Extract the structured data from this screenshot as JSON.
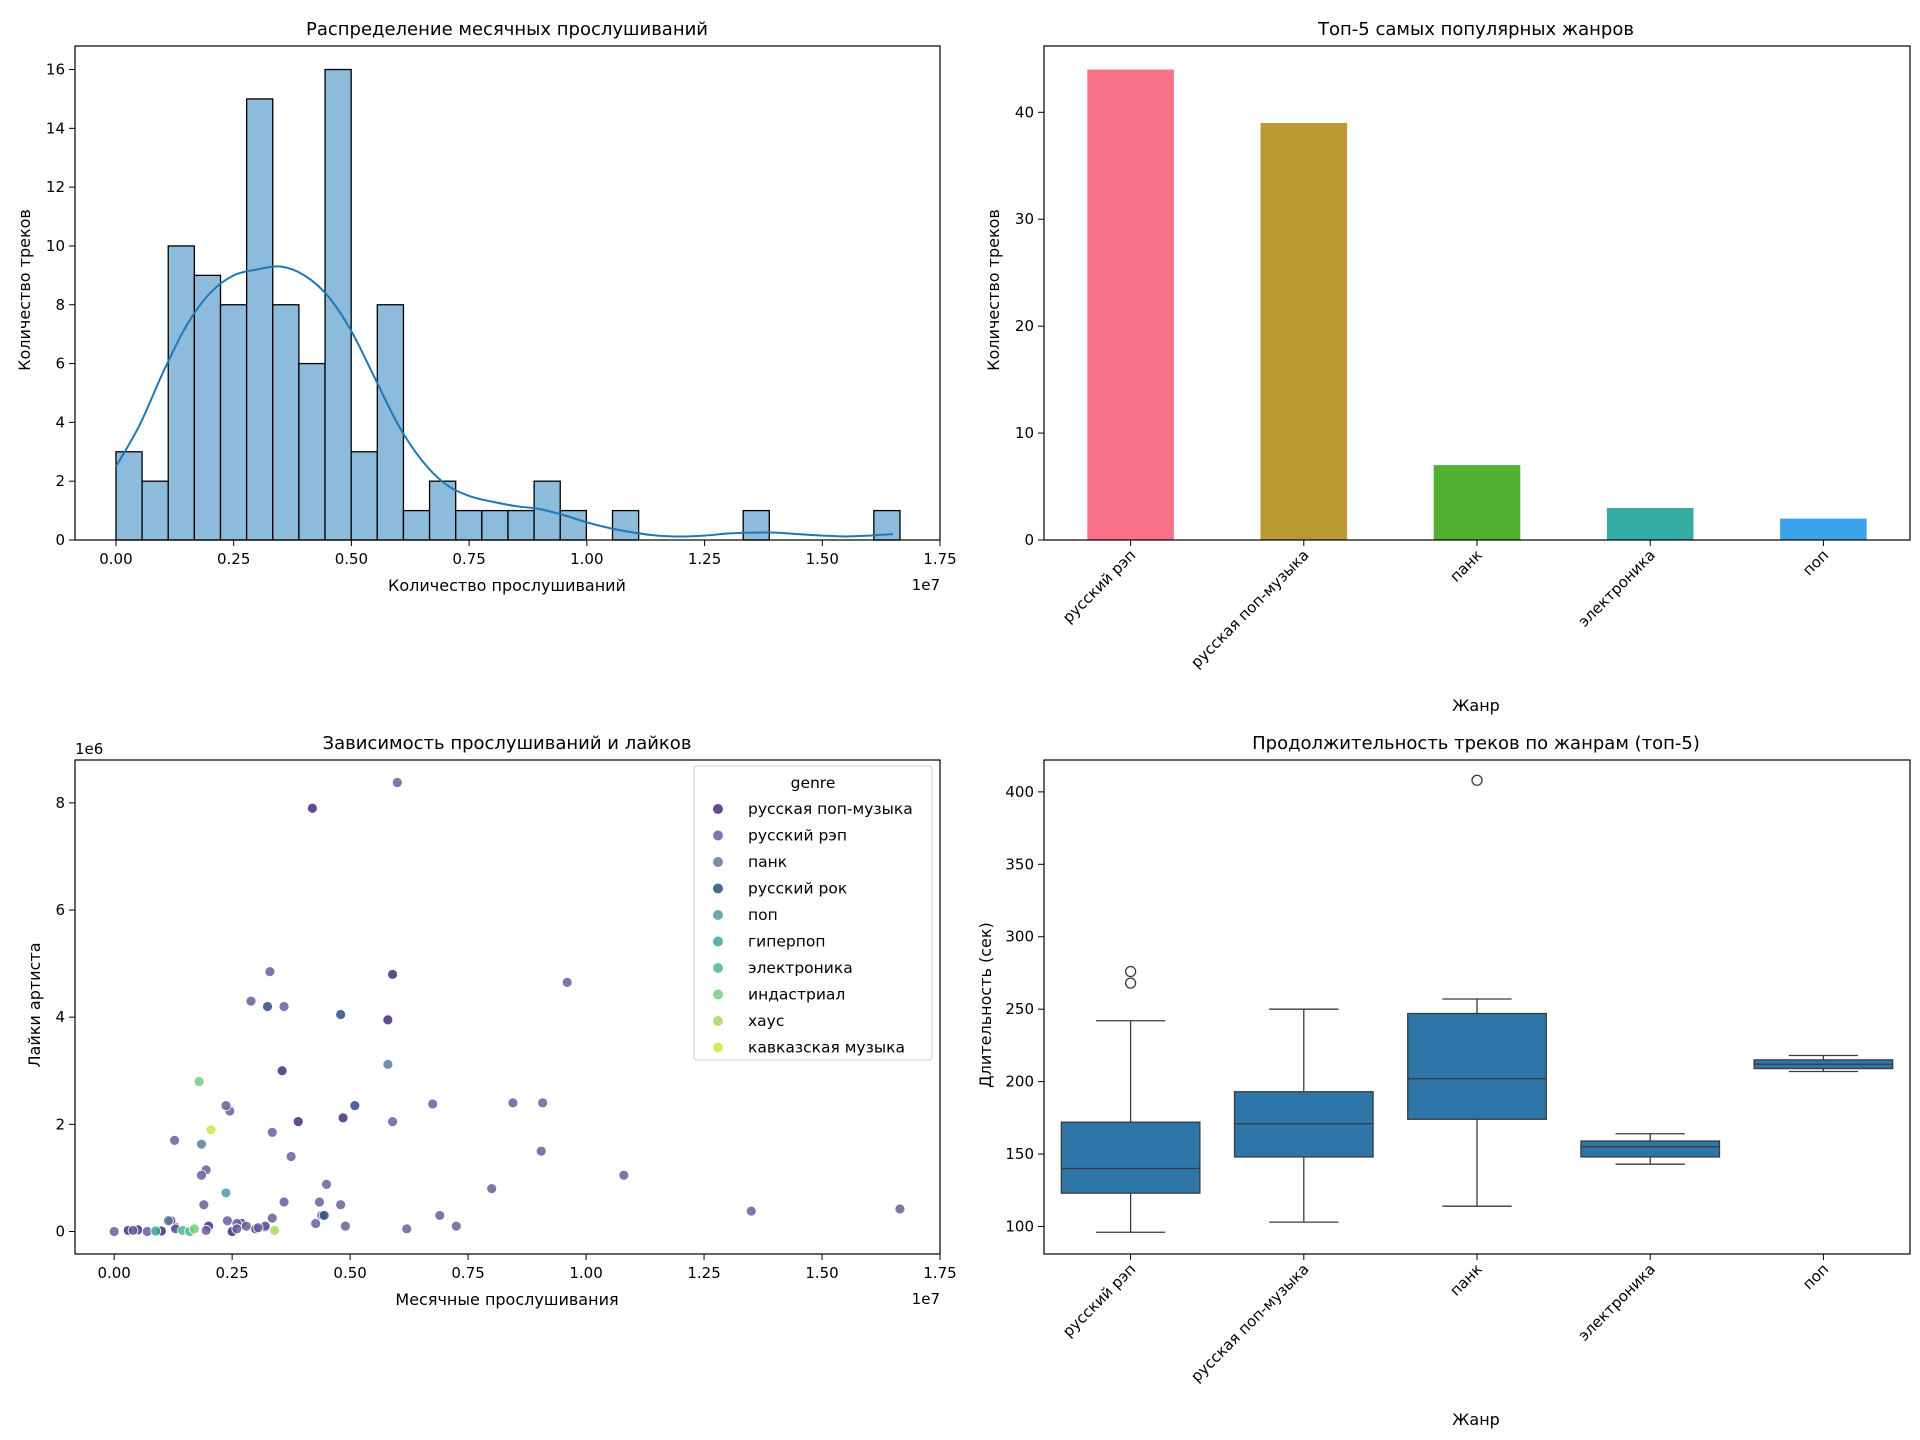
{
  "chart_data": [
    {
      "type": "bar",
      "subtype": "histogram-with-kde",
      "title": "Распределение месячных прослушиваний",
      "xlabel": "Количество прослушиваний",
      "ylabel": "Количество треков",
      "x_offset_label": "1e7",
      "xlim": [
        -0.087,
        1.75
      ],
      "ylim": [
        0,
        16.8
      ],
      "x_ticks": [
        0,
        0.25,
        0.5,
        0.75,
        1.0,
        1.25,
        1.5,
        1.75
      ],
      "x_tick_labels": [
        "0.00",
        "0.25",
        "0.50",
        "0.75",
        "1.00",
        "1.25",
        "1.50",
        "1.75"
      ],
      "y_ticks": [
        0,
        2,
        4,
        6,
        8,
        10,
        12,
        14,
        16
      ],
      "y_tick_labels": [
        "0",
        "2",
        "4",
        "6",
        "8",
        "10",
        "12",
        "14",
        "16"
      ],
      "bin_start": 0,
      "bin_width": 0.0555,
      "counts": [
        3,
        2,
        10,
        9,
        8,
        15,
        8,
        6,
        16,
        3,
        8,
        1,
        2,
        1,
        1,
        1,
        2,
        1,
        0,
        1,
        0,
        0,
        0,
        0,
        1,
        0,
        0,
        0,
        0,
        1
      ],
      "bar_color": "#8dbbdc",
      "kde": {
        "x": [
          0,
          0.05,
          0.1,
          0.15,
          0.2,
          0.25,
          0.3,
          0.35,
          0.4,
          0.45,
          0.5,
          0.55,
          0.6,
          0.65,
          0.7,
          0.75,
          0.8,
          0.85,
          0.9,
          0.95,
          1.0,
          1.05,
          1.1,
          1.15,
          1.2,
          1.25,
          1.3,
          1.35,
          1.4,
          1.45,
          1.5,
          1.55,
          1.6,
          1.65
        ],
        "y": [
          2.5,
          3.9,
          5.7,
          7.3,
          8.4,
          9.0,
          9.2,
          9.3,
          9.0,
          8.3,
          7.1,
          5.5,
          3.9,
          2.7,
          1.9,
          1.5,
          1.3,
          1.15,
          1.05,
          0.85,
          0.6,
          0.4,
          0.25,
          0.15,
          0.12,
          0.15,
          0.22,
          0.25,
          0.25,
          0.2,
          0.15,
          0.12,
          0.15,
          0.2
        ],
        "color": "#1f77b4"
      }
    },
    {
      "type": "bar",
      "title": "Топ-5 самых популярных жанров",
      "xlabel": "Жанр",
      "ylabel": "Количество треков",
      "categories": [
        "русский рэп",
        "русская поп-музыка",
        "панк",
        "электроника",
        "поп"
      ],
      "values": [
        44,
        39,
        7,
        3,
        2
      ],
      "colors": [
        "#f77189",
        "#bb9832",
        "#50b131",
        "#36ada4",
        "#3ba3ec"
      ],
      "ylim": [
        0,
        46.2
      ],
      "y_ticks": [
        0,
        10,
        20,
        30,
        40
      ],
      "y_tick_labels": [
        "0",
        "10",
        "20",
        "30",
        "40"
      ]
    },
    {
      "type": "scatter",
      "title": "Зависимость прослушиваний и лайков",
      "xlabel": "Месячные прослушивания",
      "ylabel": "Лайки артиста",
      "x_offset_label": "1e7",
      "y_offset_label": "1e6",
      "xlim": [
        -0.083,
        1.75
      ],
      "ylim": [
        -0.42,
        8.8
      ],
      "x_ticks": [
        0,
        0.25,
        0.5,
        0.75,
        1.0,
        1.25,
        1.5,
        1.75
      ],
      "x_tick_labels": [
        "0.00",
        "0.25",
        "0.50",
        "0.75",
        "1.00",
        "1.25",
        "1.50",
        "1.75"
      ],
      "y_ticks": [
        0,
        2,
        4,
        6,
        8
      ],
      "y_tick_labels": [
        "0",
        "2",
        "4",
        "6",
        "8"
      ],
      "legend_title": "genre",
      "legend_position": "upper right",
      "series": [
        {
          "name": "русская поп-музыка",
          "color": "#472c7a",
          "points": [
            [
              0.42,
              7.9
            ],
            [
              0.59,
              4.8
            ],
            [
              0.58,
              3.95
            ],
            [
              0.356,
              3.0
            ],
            [
              0.39,
              2.05
            ],
            [
              0.485,
              2.12
            ],
            [
              0.27,
              0.15
            ],
            [
              0.3,
              0.05
            ],
            [
              0.32,
              0.08
            ],
            [
              0.03,
              0.02
            ],
            [
              0.05,
              0.03
            ],
            [
              0.1,
              0.01
            ],
            [
              0.2,
              0.1
            ],
            [
              0.25,
              0.0
            ],
            [
              0.13,
              0.08
            ],
            [
              0.12,
              0.2
            ]
          ]
        },
        {
          "name": "русский рэп",
          "color": "#6b5e9e",
          "points": [
            [
              0.6,
              8.38
            ],
            [
              0.96,
              4.65
            ],
            [
              0.33,
              4.85
            ],
            [
              0.29,
              4.3
            ],
            [
              0.36,
              4.2
            ],
            [
              0.245,
              2.25
            ],
            [
              0.237,
              2.35
            ],
            [
              0.335,
              1.85
            ],
            [
              0.128,
              1.7
            ],
            [
              0.195,
              1.15
            ],
            [
              0.375,
              1.4
            ],
            [
              0.185,
              1.05
            ],
            [
              0.45,
              0.88
            ],
            [
              0.48,
              0.5
            ],
            [
              0.435,
              0.55
            ],
            [
              0.36,
              0.55
            ],
            [
              0.19,
              0.5
            ],
            [
              0.427,
              0.15
            ],
            [
              0.44,
              0.3
            ],
            [
              0.49,
              0.1
            ],
            [
              0.59,
              2.05
            ],
            [
              0.675,
              2.38
            ],
            [
              0.845,
              2.4
            ],
            [
              0.908,
              2.4
            ],
            [
              0.905,
              1.5
            ],
            [
              0.8,
              0.8
            ],
            [
              0.69,
              0.3
            ],
            [
              0.725,
              0.1
            ],
            [
              0.62,
              0.05
            ],
            [
              1.08,
              1.05
            ],
            [
              1.35,
              0.38
            ],
            [
              1.665,
              0.42
            ],
            [
              0.0,
              0.0
            ],
            [
              0.04,
              0.02
            ],
            [
              0.07,
              0.0
            ],
            [
              0.13,
              0.05
            ],
            [
              0.195,
              0.02
            ],
            [
              0.24,
              0.2
            ],
            [
              0.26,
              0.15
            ],
            [
              0.335,
              0.25
            ],
            [
              0.32,
              0.1
            ],
            [
              0.305,
              0.07
            ],
            [
              0.26,
              0.05
            ],
            [
              0.28,
              0.1
            ]
          ]
        },
        {
          "name": "панк",
          "color": "#5a7aa0",
          "points": [
            [
              0.58,
              3.12
            ],
            [
              0.185,
              1.63
            ],
            [
              0.115,
              0.2
            ]
          ]
        },
        {
          "name": "русский рок",
          "color": "#2d4f83",
          "points": [
            [
              0.48,
              4.05
            ],
            [
              0.325,
              4.2
            ],
            [
              0.51,
              2.35
            ],
            [
              0.445,
              0.3
            ]
          ]
        },
        {
          "name": "поп",
          "color": "#4f9aa8",
          "points": [
            [
              0.237,
              0.72
            ]
          ]
        },
        {
          "name": "гиперпоп",
          "color": "#3aa598",
          "points": [
            [
              0.088,
              0.01
            ]
          ]
        },
        {
          "name": "электроника",
          "color": "#4bb88b",
          "points": [
            [
              0.145,
              0.02
            ],
            [
              0.16,
              0.0
            ]
          ]
        },
        {
          "name": "индастриал",
          "color": "#78cd7e",
          "points": [
            [
              0.18,
              2.8
            ],
            [
              0.17,
              0.05
            ]
          ]
        },
        {
          "name": "хаус",
          "color": "#a6d95e",
          "points": [
            [
              0.34,
              0.02
            ]
          ]
        },
        {
          "name": "кавказская музыка",
          "color": "#d5e04a",
          "points": [
            [
              0.205,
              1.9
            ]
          ]
        }
      ]
    },
    {
      "type": "box",
      "title": "Продолжительность треков по жанрам (топ-5)",
      "xlabel": "Жанр",
      "ylabel": "Длительность (сек)",
      "categories": [
        "русский рэп",
        "русская поп-музыка",
        "панк",
        "электроника",
        "поп"
      ],
      "ylim": [
        81,
        422
      ],
      "y_ticks": [
        100,
        150,
        200,
        250,
        300,
        350,
        400
      ],
      "y_tick_labels": [
        "100",
        "150",
        "200",
        "250",
        "300",
        "350",
        "400"
      ],
      "box_color": "#2e75a8",
      "boxes": [
        {
          "whisker_low": 96,
          "q1": 123,
          "median": 140,
          "q3": 172,
          "whisker_high": 242,
          "outliers": [
            268,
            276
          ]
        },
        {
          "whisker_low": 103,
          "q1": 148,
          "median": 171,
          "q3": 193,
          "whisker_high": 250,
          "outliers": []
        },
        {
          "whisker_low": 114,
          "q1": 174,
          "median": 202,
          "q3": 247,
          "whisker_high": 257,
          "outliers": [
            408
          ]
        },
        {
          "whisker_low": 143,
          "q1": 148,
          "median": 155,
          "q3": 159,
          "whisker_high": 164,
          "outliers": []
        },
        {
          "whisker_low": 207,
          "q1": 209,
          "median": 212,
          "q3": 215,
          "whisker_high": 218,
          "outliers": []
        }
      ]
    }
  ]
}
